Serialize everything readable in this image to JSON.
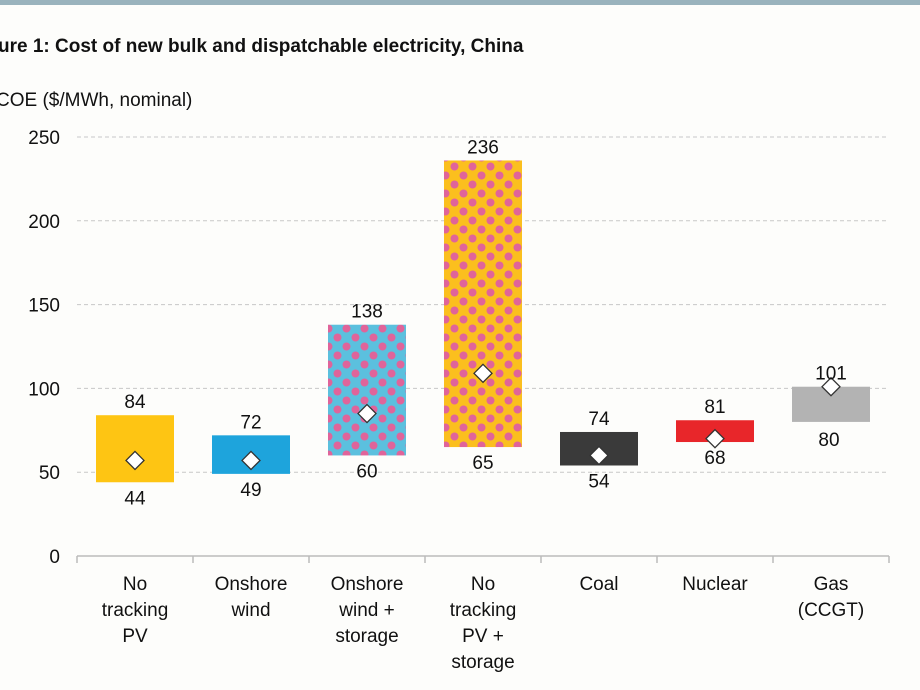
{
  "chart_data": {
    "type": "bar",
    "subtype": "floating-range",
    "title": "ure 1:  Cost of new bulk and dispatchable electricity, China",
    "ylabel": "COE ($/MWh, nominal)",
    "xlabel": "",
    "ylim": [
      0,
      250
    ],
    "yticks": [
      0,
      50,
      100,
      150,
      200,
      250
    ],
    "grid": true,
    "categories": [
      [
        "No",
        "tracking",
        "PV"
      ],
      [
        "Onshore",
        "wind"
      ],
      [
        "Onshore",
        "wind +",
        "storage"
      ],
      [
        "No",
        "tracking",
        "PV +",
        "storage"
      ],
      [
        "Coal"
      ],
      [
        "Nuclear"
      ],
      [
        "Gas",
        "(CCGT)"
      ]
    ],
    "low": [
      44,
      49,
      60,
      65,
      54,
      68,
      80
    ],
    "high": [
      84,
      72,
      138,
      236,
      74,
      81,
      101
    ],
    "marker": [
      57,
      57,
      85,
      109,
      60,
      70,
      101
    ],
    "colors": [
      "#fec513",
      "#1ea4dc",
      "#5bc0de",
      "#fbbf1e",
      "#3a3a3a",
      "#e8262a",
      "#b3b3b3"
    ],
    "patterned": [
      false,
      false,
      true,
      true,
      false,
      false,
      false
    ],
    "pattern_color": "#e0649a"
  }
}
